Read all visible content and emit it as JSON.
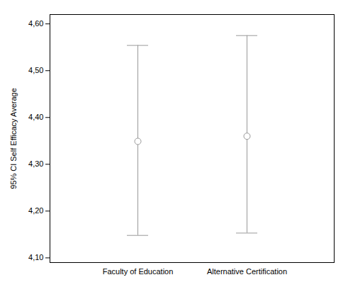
{
  "chart_data": {
    "type": "errorbar",
    "categories": [
      "Faculty of Education",
      "Alternative Certification"
    ],
    "values": [
      4.349,
      4.36
    ],
    "ci_lower": [
      4.148,
      4.153
    ],
    "ci_upper": [
      4.554,
      4.575
    ],
    "ylabel": "95% CI Self Efficacy Average",
    "ylim": [
      4.09,
      4.62
    ],
    "yticks": [
      {
        "value": 4.1,
        "label": "4,10"
      },
      {
        "value": 4.2,
        "label": "4,20"
      },
      {
        "value": 4.3,
        "label": "4,30"
      },
      {
        "value": 4.4,
        "label": "4,40"
      },
      {
        "value": 4.5,
        "label": "4,50"
      },
      {
        "value": 4.6,
        "label": "4,60"
      }
    ],
    "color": "#999999",
    "grid": false
  }
}
